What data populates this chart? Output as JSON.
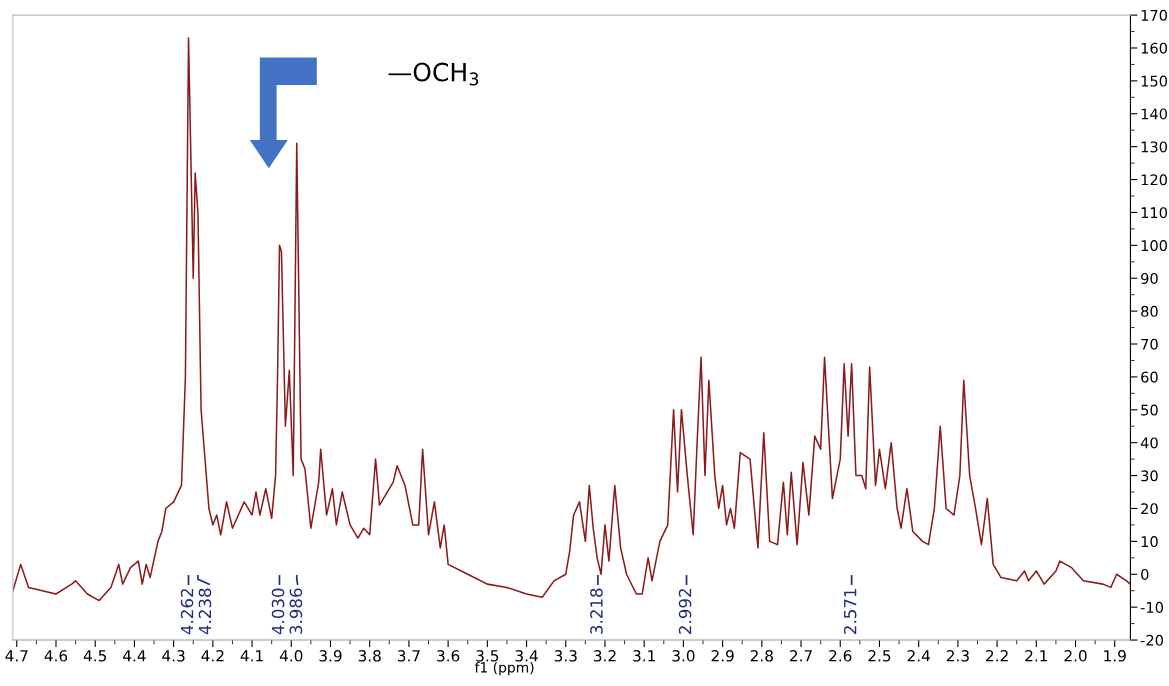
{
  "chart_data": {
    "type": "line",
    "xlabel": "f1 (ppm)",
    "xlim": [
      4.71,
      1.86
    ],
    "xticks": [
      4.7,
      4.6,
      4.5,
      4.4,
      4.3,
      4.2,
      4.1,
      {
        "value": 4.0,
        "label": "4.0"
      },
      3.9,
      3.8,
      3.7,
      3.6,
      3.5,
      3.4,
      3.3,
      3.2,
      3.1,
      {
        "value": 3.0,
        "label": "3.0"
      },
      2.9,
      2.8,
      2.7,
      2.6,
      2.5,
      2.4,
      2.3,
      2.2,
      2.1,
      {
        "value": 2.0,
        "label": "2.0"
      },
      1.9
    ],
    "ylim": [
      -20,
      170
    ],
    "yticks": [
      -20,
      -10,
      0,
      10,
      20,
      30,
      40,
      50,
      60,
      70,
      80,
      90,
      100,
      110,
      120,
      130,
      140,
      150,
      160,
      170
    ],
    "grid": false,
    "legend": false,
    "series": [
      {
        "color": "#8b1a1a",
        "x": [
          4.71,
          4.69,
          4.67,
          4.6,
          4.56,
          4.55,
          4.52,
          4.49,
          4.46,
          4.44,
          4.43,
          4.41,
          4.39,
          4.38,
          4.37,
          4.36,
          4.34,
          4.33,
          4.32,
          4.3,
          4.28,
          4.27,
          4.262,
          4.25,
          4.245,
          4.238,
          4.23,
          4.21,
          4.2,
          4.19,
          4.18,
          4.165,
          4.15,
          4.12,
          4.1,
          4.09,
          4.08,
          4.065,
          4.05,
          4.04,
          4.035,
          4.03,
          4.025,
          4.015,
          4.005,
          3.995,
          3.986,
          3.975,
          3.965,
          3.95,
          3.93,
          3.925,
          3.91,
          3.895,
          3.885,
          3.87,
          3.85,
          3.83,
          3.815,
          3.8,
          3.785,
          3.775,
          3.76,
          3.74,
          3.73,
          3.71,
          3.69,
          3.675,
          3.665,
          3.65,
          3.635,
          3.62,
          3.61,
          3.6,
          3.55,
          3.5,
          3.45,
          3.4,
          3.36,
          3.33,
          3.3,
          3.29,
          3.28,
          3.265,
          3.25,
          3.24,
          3.23,
          3.22,
          3.21,
          3.2,
          3.19,
          3.175,
          3.16,
          3.145,
          3.12,
          3.105,
          3.09,
          3.08,
          3.06,
          3.04,
          3.025,
          3.015,
          3.005,
          2.99,
          2.975,
          2.965,
          2.955,
          2.945,
          2.935,
          2.92,
          2.91,
          2.9,
          2.89,
          2.88,
          2.87,
          2.855,
          2.83,
          2.81,
          2.795,
          2.78,
          2.76,
          2.745,
          2.735,
          2.725,
          2.71,
          2.695,
          2.68,
          2.665,
          2.65,
          2.64,
          2.62,
          2.6,
          2.59,
          2.58,
          2.571,
          2.56,
          2.545,
          2.535,
          2.525,
          2.51,
          2.5,
          2.485,
          2.47,
          2.455,
          2.445,
          2.43,
          2.415,
          2.39,
          2.375,
          2.36,
          2.345,
          2.33,
          2.31,
          2.295,
          2.285,
          2.27,
          2.255,
          2.24,
          2.225,
          2.21,
          2.19,
          2.15,
          2.13,
          2.12,
          2.1,
          2.08,
          2.05,
          2.04,
          2.01,
          1.98,
          1.93,
          1.91,
          1.895,
          1.87,
          1.86
        ],
        "values": [
          -5,
          3,
          -4,
          -6,
          -3,
          -2,
          -6,
          -8,
          -4,
          3,
          -3,
          2,
          4,
          -3,
          3,
          -1,
          10,
          13,
          20,
          22,
          27,
          60,
          163,
          90,
          122,
          110,
          50,
          20,
          15,
          18,
          12,
          22,
          14,
          22,
          18,
          25,
          18,
          26,
          17,
          30,
          60,
          100,
          98,
          45,
          62,
          30,
          131,
          35,
          32,
          14,
          28,
          38,
          18,
          26,
          15,
          25,
          15,
          11,
          14,
          12,
          35,
          21,
          24,
          28,
          33,
          27,
          15,
          15,
          38,
          12,
          22,
          8,
          15,
          3,
          0,
          -3,
          -4,
          -6,
          -7,
          -2,
          0,
          7,
          18,
          22,
          10,
          27,
          14,
          5,
          0,
          15,
          4,
          27,
          8,
          0,
          -6,
          -6,
          5,
          -2,
          10,
          15,
          50,
          25,
          50,
          30,
          12,
          40,
          66,
          30,
          59,
          30,
          20,
          27,
          15,
          20,
          14,
          37,
          35,
          8,
          43,
          10,
          9,
          28,
          12,
          31,
          9,
          34,
          18,
          42,
          38,
          66,
          23,
          35,
          64,
          42,
          64,
          30,
          30,
          26,
          63,
          27,
          38,
          26,
          40,
          20,
          14,
          26,
          13,
          10,
          9,
          20,
          45,
          20,
          18,
          30,
          59,
          30,
          20,
          9,
          23,
          3,
          -1,
          -2,
          1,
          -2,
          1,
          -3,
          1,
          4,
          2,
          -2,
          -3,
          -4,
          0,
          -2,
          -3
        ]
      }
    ],
    "annotations": [
      {
        "text": "4.262",
        "x": 4.262
      },
      {
        "text": "4.238",
        "x": 4.238
      },
      {
        "text": "4.030",
        "x": 4.03
      },
      {
        "text": "3.986",
        "x": 3.986
      },
      {
        "text": "3.218",
        "x": 3.218
      },
      {
        "text": "2.992",
        "x": 2.992
      },
      {
        "text": "2.571",
        "x": 2.571
      },
      "—OCH$_{3}$"
    ]
  }
}
